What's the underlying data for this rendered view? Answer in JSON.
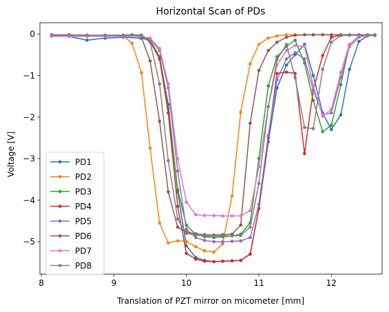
{
  "chart_data": {
    "type": "line",
    "title": "Horizontal Scan of PDs",
    "xlabel": "Translation of PZT mirror on micometer [mm]",
    "ylabel": "Voltage [V]",
    "xlim": [
      7.98,
      12.7
    ],
    "ylim": [
      -5.78,
      0.27
    ],
    "xticks": [
      8,
      9,
      10,
      11,
      12
    ],
    "yticks": [
      0,
      -1,
      -2,
      -3,
      -4,
      -5
    ],
    "grid": false,
    "legend_position": "lower-left",
    "series": [
      {
        "name": "PD1",
        "color": "#1f77b4",
        "x": [
          8.14,
          8.38,
          8.63,
          8.88,
          9.13,
          9.37,
          9.5,
          9.63,
          9.75,
          9.88,
          10.0,
          10.13,
          10.25,
          10.38,
          10.5,
          10.63,
          10.75,
          10.88,
          11.0,
          11.13,
          11.25,
          11.38,
          11.5,
          11.63,
          11.75,
          11.88,
          12.0,
          12.13,
          12.25,
          12.38,
          12.5,
          12.6
        ],
        "y": [
          -0.05,
          -0.06,
          -0.15,
          -0.1,
          -0.08,
          -0.1,
          -0.15,
          -0.55,
          -1.7,
          -3.8,
          -5.1,
          -5.38,
          -5.45,
          -5.48,
          -5.47,
          -5.46,
          -5.45,
          -5.3,
          -4.2,
          -2.6,
          -1.3,
          -0.75,
          -0.5,
          -0.25,
          -1.0,
          -1.9,
          -2.3,
          -1.95,
          -0.85,
          -0.18,
          -0.05,
          -0.03
        ]
      },
      {
        "name": "PD2",
        "color": "#ff7f0e",
        "x": [
          8.14,
          8.38,
          8.63,
          8.88,
          9.13,
          9.25,
          9.38,
          9.5,
          9.63,
          9.75,
          9.88,
          10.0,
          10.13,
          10.25,
          10.38,
          10.5,
          10.63,
          10.75,
          10.88,
          11.0,
          11.13,
          11.25,
          11.38,
          11.5,
          11.63,
          11.75,
          11.88,
          12.0,
          12.13,
          12.25,
          12.38,
          12.5,
          12.6
        ],
        "y": [
          -0.03,
          -0.03,
          -0.04,
          -0.04,
          -0.05,
          -0.22,
          -0.93,
          -2.75,
          -4.55,
          -5.03,
          -4.98,
          -4.99,
          -5.12,
          -5.22,
          -5.25,
          -5.05,
          -3.9,
          -1.88,
          -0.72,
          -0.25,
          -0.1,
          -0.05,
          -0.02,
          -0.02,
          -0.02,
          -0.02,
          -0.02,
          -0.02,
          -0.02,
          -0.02,
          -0.02,
          -0.02,
          -0.02
        ]
      },
      {
        "name": "PD3",
        "color": "#2ca02c",
        "x": [
          8.14,
          8.38,
          8.63,
          8.88,
          9.13,
          9.25,
          9.38,
          9.5,
          9.63,
          9.75,
          9.88,
          10.0,
          10.13,
          10.25,
          10.38,
          10.5,
          10.63,
          10.75,
          10.88,
          11.0,
          11.13,
          11.25,
          11.38,
          11.5,
          11.63,
          11.75,
          11.88,
          12.0,
          12.13,
          12.25,
          12.38,
          12.5,
          12.6
        ],
        "y": [
          -0.03,
          -0.03,
          -0.04,
          -0.03,
          -0.03,
          -0.02,
          -0.03,
          -0.15,
          -0.55,
          -1.8,
          -3.75,
          -4.6,
          -4.83,
          -4.88,
          -4.9,
          -4.88,
          -4.86,
          -4.82,
          -4.55,
          -3.0,
          -1.25,
          -0.55,
          -0.3,
          -0.15,
          -0.7,
          -1.6,
          -2.35,
          -2.2,
          -1.22,
          -0.25,
          -0.05,
          -0.03,
          -0.03
        ]
      },
      {
        "name": "PD4",
        "color": "#d62728",
        "x": [
          8.14,
          8.38,
          8.63,
          8.88,
          9.13,
          9.37,
          9.5,
          9.63,
          9.75,
          9.88,
          10.0,
          10.13,
          10.25,
          10.38,
          10.5,
          10.63,
          10.75,
          10.88,
          11.0,
          11.13,
          11.25,
          11.38,
          11.5,
          11.63,
          11.75,
          11.88,
          12.0,
          12.13,
          12.25,
          12.38,
          12.5,
          12.6
        ],
        "y": [
          -0.03,
          -0.03,
          -0.04,
          -0.04,
          -0.04,
          -0.05,
          -0.18,
          -0.6,
          -1.9,
          -4.15,
          -5.28,
          -5.42,
          -5.47,
          -5.48,
          -5.47,
          -5.46,
          -5.45,
          -5.3,
          -4.2,
          -2.5,
          -0.95,
          -0.92,
          -0.95,
          -2.88,
          -1.35,
          -0.52,
          -0.08,
          -0.03,
          -0.03,
          -0.03,
          -0.03,
          -0.03
        ]
      },
      {
        "name": "PD5",
        "color": "#9467bd",
        "x": [
          8.14,
          8.38,
          8.63,
          8.88,
          9.13,
          9.37,
          9.5,
          9.63,
          9.75,
          9.88,
          10.0,
          10.13,
          10.25,
          10.38,
          10.5,
          10.63,
          10.75,
          10.88,
          11.0,
          11.13,
          11.25,
          11.38,
          11.5,
          11.63,
          11.75,
          11.88,
          12.0,
          12.13,
          12.25,
          12.38,
          12.5,
          12.6
        ],
        "y": [
          -0.04,
          -0.04,
          -0.04,
          -0.04,
          -0.04,
          -0.04,
          -0.12,
          -0.4,
          -1.3,
          -3.3,
          -4.7,
          -4.9,
          -4.97,
          -5.0,
          -5.0,
          -4.99,
          -4.98,
          -4.9,
          -4.1,
          -2.45,
          -1.1,
          -0.6,
          -0.45,
          -0.6,
          -1.35,
          -1.95,
          -1.9,
          -1.05,
          -0.3,
          -0.08,
          -0.04,
          -0.04
        ]
      },
      {
        "name": "PD6",
        "color": "#8c564b",
        "x": [
          8.14,
          8.38,
          8.63,
          8.88,
          9.13,
          9.25,
          9.38,
          9.5,
          9.63,
          9.75,
          9.88,
          10.0,
          10.13,
          10.25,
          10.38,
          10.5,
          10.63,
          10.75,
          10.88,
          11.0,
          11.13,
          11.25,
          11.38,
          11.5,
          11.63,
          11.75,
          11.88,
          12.0,
          12.13,
          12.25,
          12.38,
          12.5,
          12.6
        ],
        "y": [
          -0.02,
          -0.02,
          -0.03,
          -0.03,
          -0.03,
          -0.03,
          -0.08,
          -0.65,
          -2.1,
          -3.8,
          -4.65,
          -4.77,
          -4.81,
          -4.83,
          -4.84,
          -4.83,
          -4.82,
          -4.6,
          -2.15,
          -0.88,
          -0.4,
          -0.2,
          -0.08,
          -0.03,
          -0.02,
          -0.02,
          -0.02,
          -0.02,
          -0.02,
          -0.02,
          -0.02,
          -0.02,
          -0.02
        ]
      },
      {
        "name": "PD7",
        "color": "#e377c2",
        "x": [
          8.14,
          8.38,
          8.63,
          8.88,
          9.13,
          9.37,
          9.5,
          9.63,
          9.75,
          9.88,
          10.0,
          10.13,
          10.25,
          10.38,
          10.5,
          10.63,
          10.75,
          10.88,
          11.0,
          11.13,
          11.25,
          11.38,
          11.5,
          11.63,
          11.75,
          11.88,
          12.0,
          12.13,
          12.25,
          12.38,
          12.5,
          12.6
        ],
        "y": [
          -0.06,
          -0.06,
          -0.06,
          -0.06,
          -0.06,
          -0.06,
          -0.1,
          -0.35,
          -1.2,
          -3.0,
          -4.05,
          -4.35,
          -4.37,
          -4.37,
          -4.38,
          -4.38,
          -4.38,
          -4.25,
          -3.2,
          -1.75,
          -0.75,
          -0.4,
          -0.28,
          -0.3,
          -1.25,
          -1.98,
          -1.82,
          -0.92,
          -0.25,
          -0.06,
          -0.04,
          -0.04
        ]
      },
      {
        "name": "PD8",
        "color": "#7f7f7f",
        "x": [
          8.14,
          8.38,
          8.63,
          8.88,
          9.13,
          9.37,
          9.5,
          9.63,
          9.75,
          9.88,
          10.0,
          10.13,
          10.25,
          10.38,
          10.5,
          10.63,
          10.75,
          10.88,
          11.0,
          11.13,
          11.25,
          11.38,
          11.5,
          11.63,
          11.75,
          11.88,
          12.0,
          12.13,
          12.25,
          12.38,
          12.5,
          12.6
        ],
        "y": [
          -0.02,
          -0.02,
          -0.03,
          -0.03,
          -0.03,
          -0.03,
          -0.2,
          -1.2,
          -3.05,
          -4.45,
          -4.8,
          -4.84,
          -4.86,
          -4.86,
          -4.86,
          -4.86,
          -4.85,
          -4.65,
          -3.6,
          -1.75,
          -0.62,
          -0.25,
          -1.05,
          -2.25,
          -2.28,
          -0.85,
          -0.2,
          -0.04,
          -0.03,
          -0.03,
          -0.03,
          -0.03
        ]
      }
    ]
  }
}
